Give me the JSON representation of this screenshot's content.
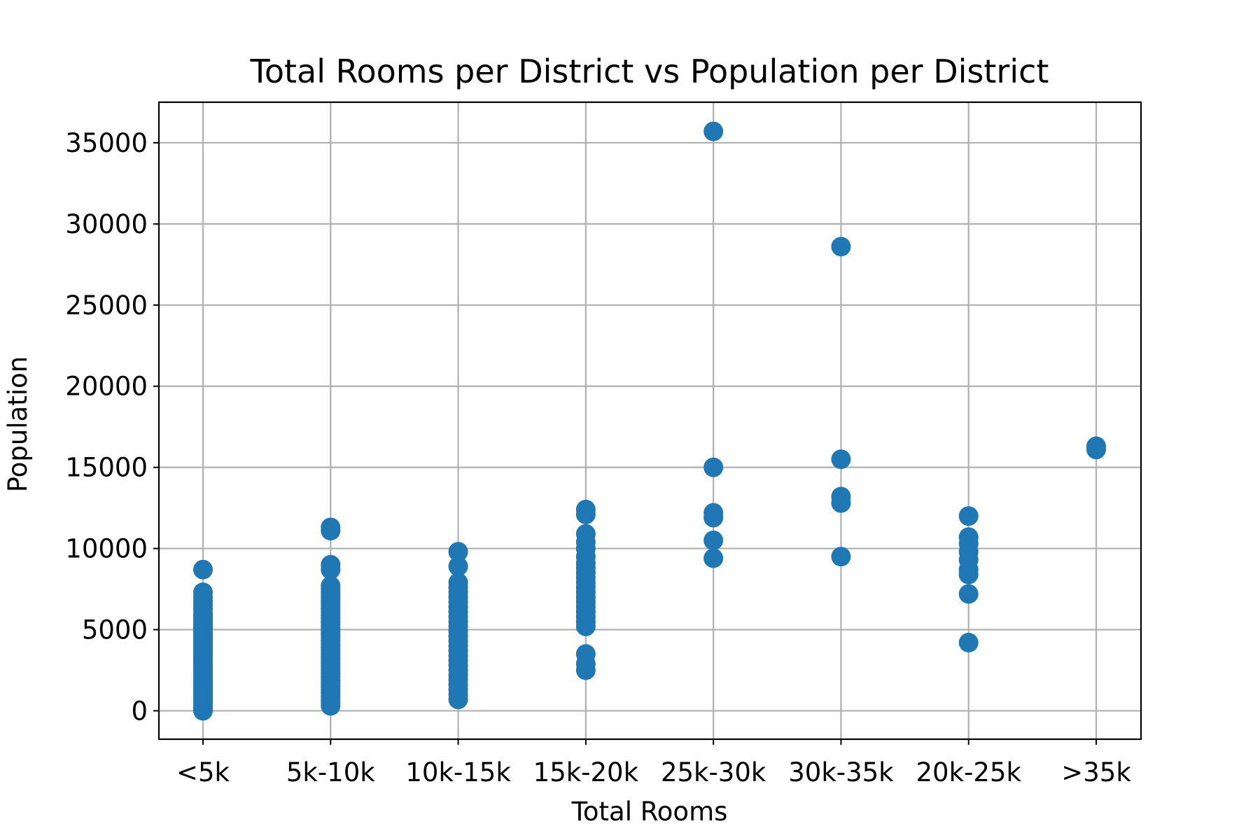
{
  "chart_data": {
    "type": "scatter",
    "title": "Total Rooms per District vs Population per District",
    "xlabel": "Total Rooms",
    "ylabel": "Population",
    "categories": [
      "<5k",
      "5k-10k",
      "10k-15k",
      "15k-20k",
      "25k-30k",
      "30k-35k",
      "20k-25k",
      ">35k"
    ],
    "yticks": [
      0,
      5000,
      10000,
      15000,
      20000,
      25000,
      30000,
      35000
    ],
    "ylim": [
      -1750,
      37500
    ],
    "grid": true,
    "marker_color": "#1f77b4",
    "series": [
      {
        "points": [
          {
            "category": "<5k",
            "ys": [
              0,
              150,
              300,
              450,
              600,
              750,
              900,
              1050,
              1200,
              1350,
              1500,
              1650,
              1800,
              1950,
              2100,
              2250,
              2400,
              2550,
              2700,
              2850,
              3000,
              3150,
              3300,
              3450,
              3600,
              3750,
              3900,
              4050,
              4200,
              4350,
              4500,
              4650,
              4800,
              4950,
              5100,
              5250,
              5400,
              5550,
              5700,
              5850,
              6000,
              6250,
              6500,
              6750,
              7000,
              7300,
              8700
            ]
          },
          {
            "category": "5k-10k",
            "ys": [
              300,
              500,
              700,
              900,
              1100,
              1300,
              1500,
              1700,
              1900,
              2100,
              2300,
              2500,
              2700,
              2900,
              3100,
              3300,
              3500,
              3700,
              3900,
              4100,
              4300,
              4500,
              4700,
              4900,
              5100,
              5300,
              5500,
              5700,
              5900,
              6100,
              6300,
              6500,
              6700,
              6900,
              7100,
              7300,
              7500,
              7700,
              8700,
              9000,
              11100,
              11300
            ]
          },
          {
            "category": "10k-15k",
            "ys": [
              700,
              1000,
              1300,
              1600,
              1900,
              2200,
              2500,
              2800,
              3100,
              3400,
              3700,
              4000,
              4300,
              4600,
              4900,
              5200,
              5500,
              5800,
              6100,
              6400,
              6700,
              7000,
              7300,
              7600,
              7900,
              8900,
              9800
            ]
          },
          {
            "category": "15k-20k",
            "ys": [
              2500,
              2900,
              3500,
              5200,
              5500,
              5800,
              6100,
              6400,
              6700,
              7000,
              7300,
              7600,
              7900,
              8200,
              8500,
              8800,
              9100,
              9500,
              10000,
              10400,
              10900,
              12100,
              12400
            ]
          },
          {
            "category": "25k-30k",
            "ys": [
              9400,
              10500,
              11900,
              12200,
              15000,
              35700
            ]
          },
          {
            "category": "30k-35k",
            "ys": [
              9500,
              12800,
              13200,
              15500,
              28600
            ]
          },
          {
            "category": "20k-25k",
            "ys": [
              4200,
              7200,
              8400,
              8700,
              9300,
              9800,
              10300,
              10700,
              12000
            ]
          },
          {
            "category": ">35k",
            "ys": [
              16100,
              16300
            ]
          }
        ]
      }
    ]
  }
}
